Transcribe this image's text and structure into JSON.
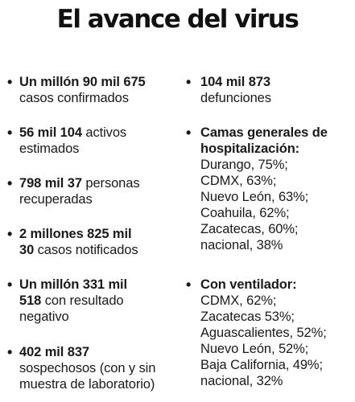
{
  "title": "El avance del virus",
  "left_items": [
    {
      "bold1": "Un millón 90 mil 675",
      "rest1": "",
      "line2_bold": "",
      "line2": "casos confirmados",
      "line3": ""
    },
    {
      "bold1": "56 mil 104",
      "rest1": " activos",
      "line2_bold": "",
      "line2": "estimados",
      "line3": ""
    },
    {
      "bold1": "798 mil 37",
      "rest1": " personas",
      "line2_bold": "",
      "line2": "recuperadas",
      "line3": ""
    },
    {
      "bold1": "2 millones 825 mil",
      "rest1": "",
      "line2_bold": "30",
      "line2": " casos notificados",
      "line3": ""
    },
    {
      "bold1": "Un millón 331 mil",
      "rest1": "",
      "line2_bold": "518",
      "line2": " con resultado",
      "line3": "negativo"
    },
    {
      "bold1": "402 mil 837",
      "rest1": "",
      "line2_bold": "",
      "line2": "sospechosos (con y sin",
      "line3": "muestra de laboratorio)"
    }
  ],
  "right_top": {
    "bold1": "104 mil 873",
    "line2": "defunciones"
  },
  "camas": {
    "heading_line1": "Camas generales de",
    "heading_line2": "hospitalización:",
    "entries": [
      "Durango, 75%;",
      "CDMX, 63%;",
      "Nuevo León, 63%;",
      "Coahuila, 62%;",
      "Zacatecas, 60%;",
      "nacional, 38%"
    ]
  },
  "ventilador": {
    "heading": "Con ventilador:",
    "entries": [
      "CDMX, 62%;",
      "Zacatecas 53%;",
      "Aguascalientes, 52%;",
      "Nuevo León, 52%;",
      "Baja California, 49%;",
      "nacional, 32%"
    ]
  }
}
